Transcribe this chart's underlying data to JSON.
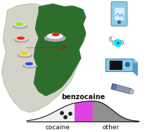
{
  "bg_color": "#ffffff",
  "south_america_color": "#d3d3c8",
  "brazil_color": "#2d6e2d",
  "label_cocaine": "cocaine",
  "label_benzocaine": "benzocaine",
  "label_other": "other",
  "phone_color": "#87ceeb",
  "device_color": "#87ceeb",
  "bluetooth_color": "#00e5ff",
  "label_fontsize": 6.5,
  "label_fontsize_benzo": 7
}
